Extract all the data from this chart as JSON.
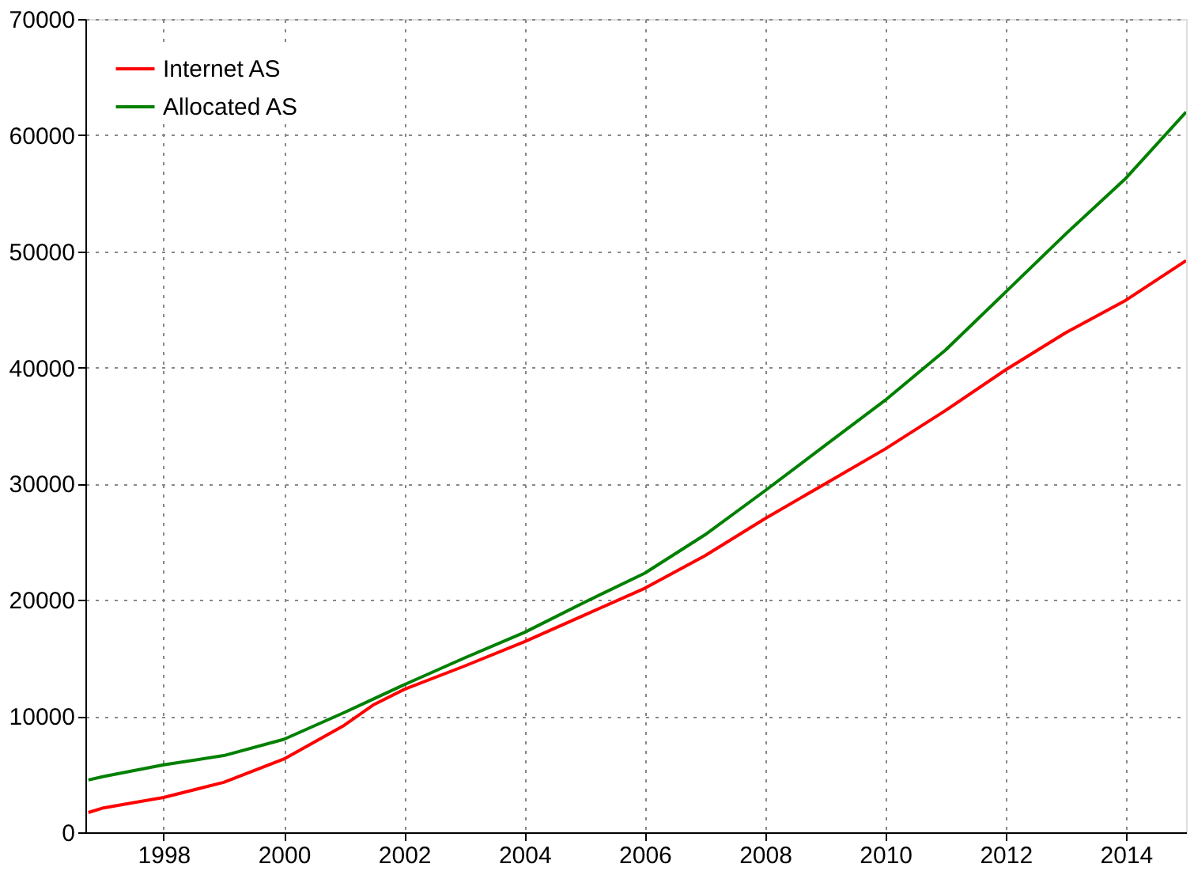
{
  "chart_data": {
    "type": "line",
    "xlim": [
      1996.7,
      2015
    ],
    "xticks": [
      1998,
      2000,
      2002,
      2004,
      2006,
      2008,
      2010,
      2012,
      2014
    ],
    "ylim": [
      0,
      70000
    ],
    "yticks": [
      0,
      10000,
      20000,
      30000,
      40000,
      50000,
      60000,
      70000
    ],
    "grid": true,
    "legend": "top left",
    "marker": "none",
    "line_style": "solid",
    "x": [
      1996.75,
      1997,
      1998,
      1999,
      2000,
      2001,
      2001.5,
      2002,
      2003,
      2004,
      2005,
      2006,
      2007,
      2008,
      2009,
      2010,
      2011,
      2012,
      2013,
      2014,
      2015
    ],
    "series": [
      {
        "name": "Internet AS",
        "color": "#ff0000",
        "values": [
          1700,
          2100,
          3000,
          4300,
          6300,
          9200,
          11000,
          12300,
          14300,
          16400,
          18700,
          21000,
          23800,
          27000,
          30000,
          33000,
          36300,
          39800,
          43000,
          45800,
          49200
        ]
      },
      {
        "name": "Allocated AS",
        "color": "#008000",
        "values": [
          4500,
          4800,
          5800,
          6600,
          8000,
          10300,
          11500,
          12700,
          15000,
          17200,
          19800,
          22300,
          25600,
          29400,
          33300,
          37200,
          41500,
          46500,
          51500,
          56300,
          62000
        ]
      }
    ]
  }
}
